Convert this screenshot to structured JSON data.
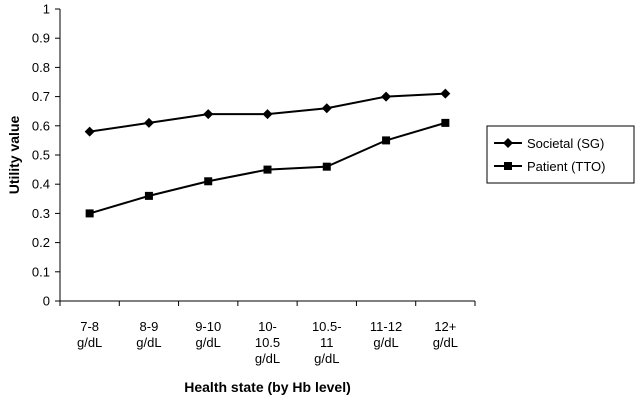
{
  "chart_data": {
    "type": "line",
    "title": "",
    "xlabel": "Health state (by Hb level)",
    "ylabel": "Utility value",
    "ylim": [
      0,
      1
    ],
    "yticks": [
      0,
      0.1,
      0.2,
      0.3,
      0.4,
      0.5,
      0.6,
      0.7,
      0.8,
      0.9,
      1
    ],
    "ytick_labels": [
      "0",
      "0.1",
      "0.2",
      "0.3",
      "0.4",
      "0.5",
      "0.6",
      "0.7",
      "0.8",
      "0.9",
      "1"
    ],
    "grid": false,
    "legend_position": "right",
    "categories": [
      [
        "7-8",
        "g/dL"
      ],
      [
        "8-9",
        "g/dL"
      ],
      [
        "9-10",
        "g/dL"
      ],
      [
        "10-",
        "10.5",
        "g/dL"
      ],
      [
        "10.5-",
        "11",
        "g/dL"
      ],
      [
        "11-12",
        "g/dL"
      ],
      [
        "12+",
        "g/dL"
      ]
    ],
    "series": [
      {
        "name": "Societal (SG)",
        "marker": "diamond",
        "color": "#000000",
        "values": [
          0.58,
          0.61,
          0.64,
          0.64,
          0.66,
          0.7,
          0.71
        ]
      },
      {
        "name": "Patient (TTO)",
        "marker": "square",
        "color": "#000000",
        "values": [
          0.3,
          0.36,
          0.41,
          0.45,
          0.46,
          0.55,
          0.61
        ]
      }
    ]
  }
}
